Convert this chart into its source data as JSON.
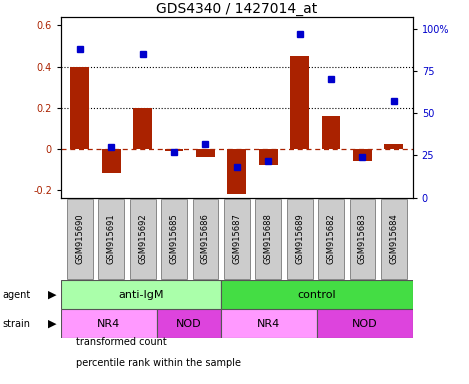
{
  "title": "GDS4340 / 1427014_at",
  "samples": [
    "GSM915690",
    "GSM915691",
    "GSM915692",
    "GSM915685",
    "GSM915686",
    "GSM915687",
    "GSM915688",
    "GSM915689",
    "GSM915682",
    "GSM915683",
    "GSM915684"
  ],
  "bar_values": [
    0.4,
    -0.12,
    0.2,
    -0.01,
    -0.04,
    -0.22,
    -0.08,
    0.45,
    0.16,
    -0.06,
    0.02
  ],
  "percentile_values": [
    88,
    30,
    85,
    27,
    32,
    18,
    22,
    97,
    70,
    24,
    57
  ],
  "ylim_left": [
    -0.24,
    0.64
  ],
  "ylim_right": [
    0,
    106.67
  ],
  "yticks_left": [
    -0.2,
    0.0,
    0.2,
    0.4,
    0.6
  ],
  "yticks_right": [
    0,
    25,
    50,
    75,
    100
  ],
  "ytick_labels_right": [
    "0",
    "25",
    "50",
    "75",
    "100%"
  ],
  "bar_color": "#AA2200",
  "dot_color": "#0000CC",
  "agent_groups": [
    {
      "label": "anti-IgM",
      "start": 0,
      "end": 5,
      "color": "#AAFFAA"
    },
    {
      "label": "control",
      "start": 5,
      "end": 11,
      "color": "#44DD44"
    }
  ],
  "strain_groups": [
    {
      "label": "NR4",
      "start": 0,
      "end": 3,
      "color": "#FF99FF"
    },
    {
      "label": "NOD",
      "start": 3,
      "end": 5,
      "color": "#DD44DD"
    },
    {
      "label": "NR4",
      "start": 5,
      "end": 8,
      "color": "#FF99FF"
    },
    {
      "label": "NOD",
      "start": 8,
      "end": 11,
      "color": "#DD44DD"
    }
  ],
  "legend_items": [
    {
      "label": "transformed count",
      "color": "#AA2200"
    },
    {
      "label": "percentile rank within the sample",
      "color": "#0000CC"
    }
  ],
  "title_fontsize": 10,
  "tick_fontsize": 7,
  "sample_fontsize": 6,
  "group_fontsize": 8,
  "legend_fontsize": 7,
  "label_fontsize": 7
}
